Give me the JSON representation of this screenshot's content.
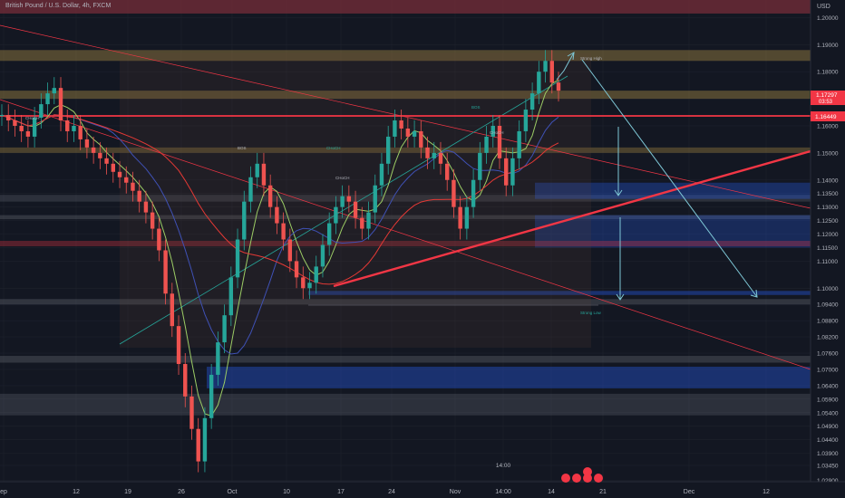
{
  "header": {
    "symbol_title": "British Pound / U.S. Dollar, 4h, FXCM",
    "currency": "USD"
  },
  "price_labels": {
    "last_price": "1.17297",
    "countdown": "03:53",
    "level_price": "1.16449"
  },
  "annotations": {
    "strong_high": "Strong High",
    "strong_low": "Strong Low",
    "bos": "BOS",
    "choch": "CHoCH",
    "time_label": "14:00"
  },
  "colors": {
    "background": "#131722",
    "up_candle": "#26a69a",
    "down_candle": "#ef5350",
    "red_line": "#f23645",
    "cyan_arrow": "#7ec7d6",
    "supply_zone": "#c9a24a",
    "demand_zone": "#2962ff",
    "grid": "#1e222d"
  },
  "chart_data": {
    "type": "candlestick",
    "y_axis": {
      "label": "USD",
      "ylim": [
        1.0285,
        1.2065
      ],
      "ticks": [
        "1.20000",
        "1.19000",
        "1.18000",
        "1.17000",
        "1.16000",
        "1.15000",
        "1.14000",
        "1.13500",
        "1.13000",
        "1.12500",
        "1.12000",
        "1.11500",
        "1.11000",
        "1.10000",
        "1.09400",
        "1.08800",
        "1.08200",
        "1.07600",
        "1.07000",
        "1.06400",
        "1.05900",
        "1.05400",
        "1.04900",
        "1.04400",
        "1.03900",
        "1.03450",
        "1.02900"
      ]
    },
    "x_axis": {
      "ticks": [
        "ep",
        "12",
        "19",
        "26",
        "Oct",
        "10",
        "17",
        "24",
        "Nov",
        "14:00",
        "14",
        "21",
        "Dec",
        "12"
      ]
    },
    "price_path": [
      1.164,
      1.162,
      1.16,
      1.158,
      1.156,
      1.163,
      1.168,
      1.172,
      1.174,
      1.162,
      1.158,
      1.16,
      1.155,
      1.152,
      1.15,
      1.148,
      1.146,
      1.143,
      1.141,
      1.139,
      1.136,
      1.132,
      1.128,
      1.122,
      1.114,
      1.098,
      1.086,
      1.072,
      1.06,
      1.048,
      1.036,
      1.052,
      1.068,
      1.08,
      1.09,
      1.104,
      1.118,
      1.132,
      1.141,
      1.146,
      1.138,
      1.13,
      1.124,
      1.118,
      1.11,
      1.104,
      1.1,
      1.102,
      1.108,
      1.116,
      1.124,
      1.13,
      1.134,
      1.132,
      1.126,
      1.122,
      1.128,
      1.138,
      1.146,
      1.156,
      1.162,
      1.159,
      1.156,
      1.158,
      1.152,
      1.148,
      1.15,
      1.146,
      1.14,
      1.13,
      1.122,
      1.13,
      1.14,
      1.15,
      1.156,
      1.16,
      1.148,
      1.138,
      1.148,
      1.158,
      1.166,
      1.172,
      1.18,
      1.184,
      1.176,
      1.173
    ],
    "levels": [
      {
        "price": 1.16449,
        "label": "1.16449"
      }
    ],
    "last_price": 1.17297
  }
}
